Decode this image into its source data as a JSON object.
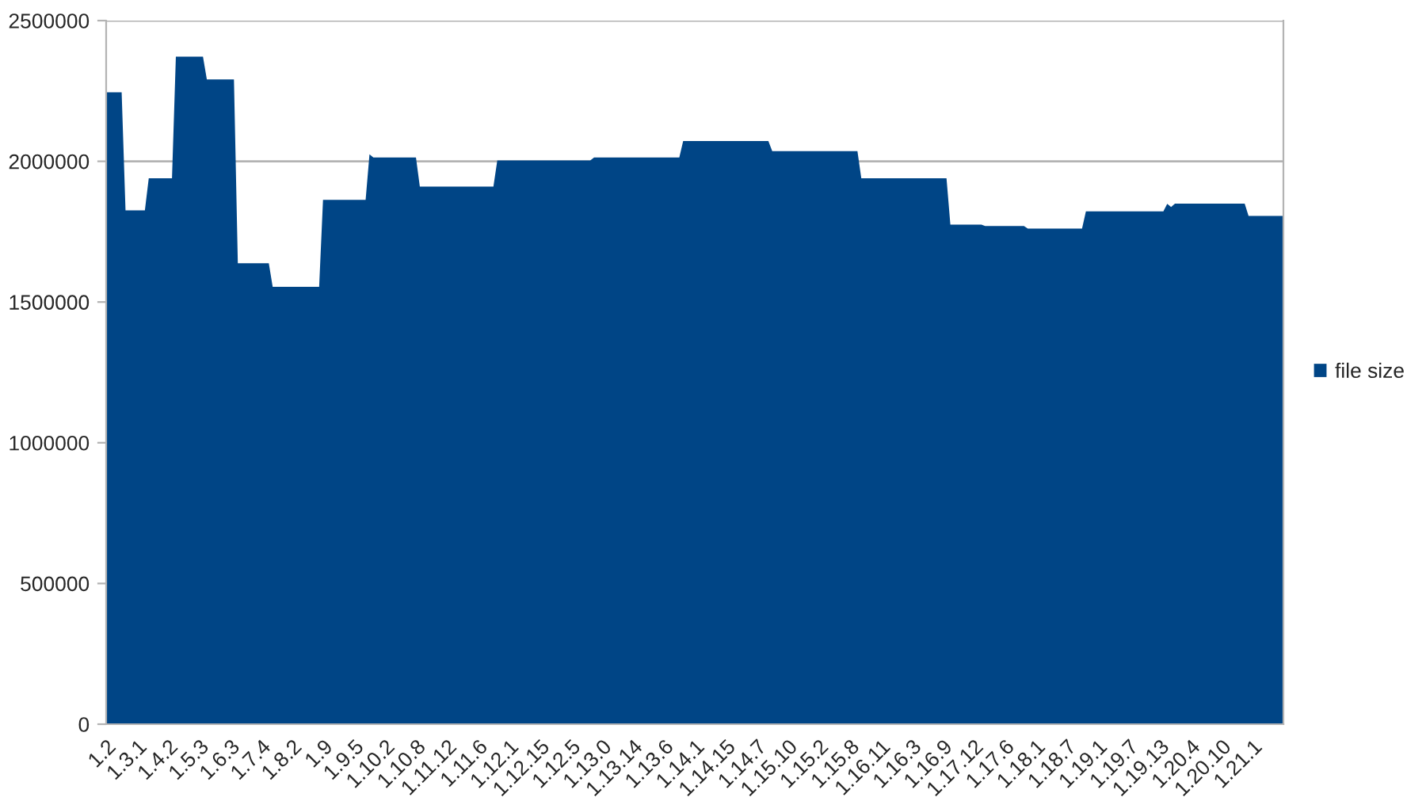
{
  "chart_data": {
    "type": "area",
    "categories": [
      "1.2",
      null,
      null,
      null,
      null,
      null,
      null,
      null,
      "1.3.1",
      null,
      null,
      null,
      null,
      null,
      null,
      null,
      "1.4.2",
      null,
      null,
      null,
      null,
      null,
      null,
      null,
      "1.5.3",
      null,
      null,
      null,
      null,
      null,
      null,
      null,
      "1.6.3",
      null,
      null,
      null,
      null,
      null,
      null,
      null,
      "1.7.4",
      null,
      null,
      null,
      null,
      null,
      null,
      null,
      "1.8.2",
      null,
      null,
      null,
      null,
      null,
      null,
      null,
      "1.9",
      null,
      null,
      null,
      null,
      null,
      null,
      null,
      "1.9.5",
      null,
      null,
      null,
      null,
      null,
      null,
      null,
      "1.10.2",
      null,
      null,
      null,
      null,
      null,
      null,
      null,
      "1.10.8",
      null,
      null,
      null,
      null,
      null,
      null,
      null,
      "1.11.12",
      null,
      null,
      null,
      null,
      null,
      null,
      null,
      "1.11.6",
      null,
      null,
      null,
      null,
      null,
      null,
      null,
      "1.12.1",
      null,
      null,
      null,
      null,
      null,
      null,
      null,
      "1.12.15",
      null,
      null,
      null,
      null,
      null,
      null,
      null,
      "1.12.5",
      null,
      null,
      null,
      null,
      null,
      null,
      null,
      "1.13.0",
      null,
      null,
      null,
      null,
      null,
      null,
      null,
      "1.13.14",
      null,
      null,
      null,
      null,
      null,
      null,
      null,
      "1.13.6",
      null,
      null,
      null,
      null,
      null,
      null,
      null,
      "1.14.1",
      null,
      null,
      null,
      null,
      null,
      null,
      null,
      "1.14.15",
      null,
      null,
      null,
      null,
      null,
      null,
      null,
      "1.14.7",
      null,
      null,
      null,
      null,
      null,
      null,
      null,
      "1.15.10",
      null,
      null,
      null,
      null,
      null,
      null,
      null,
      "1.15.2",
      null,
      null,
      null,
      null,
      null,
      null,
      null,
      "1.15.8",
      null,
      null,
      null,
      null,
      null,
      null,
      null,
      "1.16.11",
      null,
      null,
      null,
      null,
      null,
      null,
      null,
      "1.16.3",
      null,
      null,
      null,
      null,
      null,
      null,
      null,
      "1.16.9",
      null,
      null,
      null,
      null,
      null,
      null,
      null,
      "1.17.12",
      null,
      null,
      null,
      null,
      null,
      null,
      null,
      "1.17.6",
      null,
      null,
      null,
      null,
      null,
      null,
      null,
      "1.18.1",
      null,
      null,
      null,
      null,
      null,
      null,
      null,
      "1.18.7",
      null,
      null,
      null,
      null,
      null,
      null,
      null,
      "1.19.1",
      null,
      null,
      null,
      null,
      null,
      null,
      null,
      "1.19.7",
      null,
      null,
      null,
      null,
      null,
      null,
      null,
      "1.19.13",
      null,
      null,
      null,
      null,
      null,
      null,
      null,
      "1.20.4",
      null,
      null,
      null,
      null,
      null,
      null,
      null,
      "1.20.10",
      null,
      null,
      null,
      null,
      null,
      null,
      null,
      "1.21.1",
      null,
      null,
      null,
      null,
      null,
      null,
      null,
      null
    ],
    "series": [
      {
        "name": "file size",
        "color": "#004586",
        "values": [
          2245000,
          2245000,
          2245000,
          2245000,
          2245000,
          1826000,
          1826000,
          1826000,
          1826000,
          1826000,
          1826000,
          1940000,
          1940000,
          1940000,
          1940000,
          1940000,
          1940000,
          1940000,
          2372000,
          2372000,
          2372000,
          2372000,
          2372000,
          2372000,
          2372000,
          2372000,
          2291000,
          2291000,
          2291000,
          2291000,
          2291000,
          2291000,
          2291000,
          2291000,
          1638000,
          1638000,
          1638000,
          1638000,
          1638000,
          1638000,
          1638000,
          1638000,
          1638000,
          1554000,
          1554000,
          1554000,
          1554000,
          1554000,
          1554000,
          1554000,
          1554000,
          1554000,
          1554000,
          1554000,
          1554000,
          1554000,
          1863000,
          1863000,
          1863000,
          1863000,
          1863000,
          1863000,
          1863000,
          1863000,
          1863000,
          1863000,
          1863000,
          1863000,
          2025000,
          2014000,
          2014000,
          2014000,
          2014000,
          2014000,
          2014000,
          2014000,
          2014000,
          2014000,
          2014000,
          2014000,
          2014000,
          1910000,
          1910000,
          1910000,
          1910000,
          1910000,
          1910000,
          1910000,
          1910000,
          1910000,
          1910000,
          1910000,
          1910000,
          1910000,
          1910000,
          1910000,
          1910000,
          1910000,
          1910000,
          1910000,
          1910000,
          2003000,
          2003000,
          2003000,
          2003000,
          2003000,
          2003000,
          2003000,
          2003000,
          2003000,
          2003000,
          2003000,
          2003000,
          2003000,
          2003000,
          2003000,
          2003000,
          2003000,
          2003000,
          2003000,
          2003000,
          2003000,
          2003000,
          2003000,
          2003000,
          2003000,
          2014000,
          2014000,
          2014000,
          2014000,
          2014000,
          2014000,
          2014000,
          2014000,
          2014000,
          2014000,
          2014000,
          2014000,
          2014000,
          2014000,
          2014000,
          2014000,
          2014000,
          2014000,
          2014000,
          2014000,
          2014000,
          2014000,
          2014000,
          2072000,
          2072000,
          2072000,
          2072000,
          2072000,
          2072000,
          2072000,
          2072000,
          2072000,
          2072000,
          2072000,
          2072000,
          2072000,
          2072000,
          2072000,
          2072000,
          2072000,
          2072000,
          2072000,
          2072000,
          2072000,
          2072000,
          2072000,
          2036000,
          2036000,
          2036000,
          2036000,
          2036000,
          2036000,
          2036000,
          2036000,
          2036000,
          2036000,
          2036000,
          2036000,
          2036000,
          2036000,
          2036000,
          2036000,
          2036000,
          2036000,
          2036000,
          2036000,
          2036000,
          2036000,
          2036000,
          1940000,
          1940000,
          1940000,
          1940000,
          1940000,
          1940000,
          1940000,
          1940000,
          1940000,
          1940000,
          1940000,
          1940000,
          1940000,
          1940000,
          1940000,
          1940000,
          1940000,
          1940000,
          1940000,
          1940000,
          1940000,
          1940000,
          1940000,
          1775000,
          1775000,
          1775000,
          1775000,
          1775000,
          1775000,
          1775000,
          1775000,
          1775000,
          1770000,
          1770000,
          1770000,
          1770000,
          1770000,
          1770000,
          1770000,
          1770000,
          1770000,
          1770000,
          1770000,
          1761000,
          1761000,
          1761000,
          1761000,
          1761000,
          1761000,
          1761000,
          1761000,
          1761000,
          1761000,
          1761000,
          1761000,
          1761000,
          1761000,
          1761000,
          1822000,
          1822000,
          1822000,
          1822000,
          1822000,
          1822000,
          1822000,
          1822000,
          1822000,
          1822000,
          1822000,
          1822000,
          1822000,
          1822000,
          1822000,
          1822000,
          1822000,
          1822000,
          1822000,
          1822000,
          1822000,
          1849000,
          1838000,
          1850000,
          1850000,
          1850000,
          1850000,
          1850000,
          1850000,
          1850000,
          1850000,
          1850000,
          1850000,
          1850000,
          1850000,
          1850000,
          1850000,
          1850000,
          1850000,
          1850000,
          1850000,
          1850000,
          1806000,
          1806000,
          1806000,
          1806000,
          1806000,
          1806000,
          1806000,
          1806000,
          1806000,
          1806000
        ]
      }
    ],
    "ylim": [
      0,
      2500000
    ],
    "yticks": [
      0,
      500000,
      1000000,
      1500000,
      2000000,
      2500000
    ],
    "grid": "y",
    "legend": "right"
  }
}
